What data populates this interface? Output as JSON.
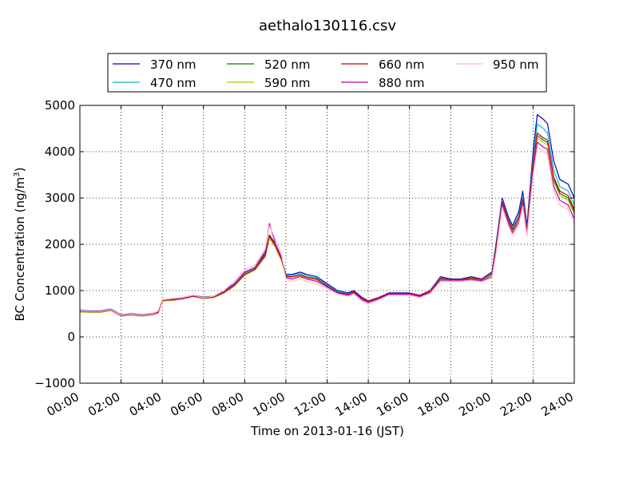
{
  "chart_data": {
    "type": "line",
    "title": "aethalo130116.csv",
    "xlabel": "Time on 2013-01-16 (JST)",
    "ylabel": "BC Concentration (ng/m³)",
    "ylabel_parts": {
      "main": "BC Concentration (ng/m",
      "sup": "3",
      "end": ")"
    },
    "xlim": [
      0,
      24
    ],
    "ylim": [
      -1000,
      5000
    ],
    "x_ticks": [
      0,
      2,
      4,
      6,
      8,
      10,
      12,
      14,
      16,
      18,
      20,
      22,
      24
    ],
    "x_tick_labels": [
      "00:00",
      "02:00",
      "04:00",
      "06:00",
      "08:00",
      "10:00",
      "12:00",
      "14:00",
      "16:00",
      "18:00",
      "20:00",
      "22:00",
      "24:00"
    ],
    "y_ticks": [
      -1000,
      0,
      1000,
      2000,
      3000,
      4000,
      5000
    ],
    "y_tick_labels": [
      "−1000",
      "0",
      "1000",
      "2000",
      "3000",
      "4000",
      "5000"
    ],
    "grid": true,
    "legend_position": "top",
    "x": [
      0.0,
      0.5,
      1.0,
      1.5,
      2.0,
      2.5,
      3.0,
      3.5,
      3.8,
      4.0,
      4.5,
      5.0,
      5.5,
      6.0,
      6.5,
      7.0,
      7.5,
      8.0,
      8.5,
      9.0,
      9.2,
      9.5,
      9.8,
      10.0,
      10.3,
      10.7,
      11.0,
      11.5,
      12.0,
      12.5,
      13.0,
      13.3,
      13.7,
      14.0,
      14.5,
      15.0,
      15.5,
      16.0,
      16.5,
      17.0,
      17.5,
      18.0,
      18.5,
      19.0,
      19.5,
      20.0,
      20.2,
      20.5,
      20.8,
      21.0,
      21.3,
      21.5,
      21.7,
      22.0,
      22.2,
      22.5,
      22.7,
      23.0,
      23.3,
      23.7,
      24.0
    ],
    "series": [
      {
        "name": "370 nm",
        "color": "#0000cc",
        "values": [
          570,
          560,
          560,
          600,
          480,
          500,
          480,
          500,
          550,
          800,
          820,
          850,
          900,
          860,
          880,
          1000,
          1150,
          1400,
          1500,
          1800,
          2200,
          2000,
          1700,
          1350,
          1350,
          1400,
          1350,
          1300,
          1150,
          1000,
          950,
          1000,
          850,
          780,
          850,
          950,
          950,
          950,
          900,
          1000,
          1300,
          1250,
          1250,
          1300,
          1250,
          1400,
          2000,
          3000,
          2600,
          2400,
          2700,
          3150,
          2400,
          4000,
          4800,
          4700,
          4600,
          3800,
          3400,
          3300,
          3000
        ]
      },
      {
        "name": "470 nm",
        "color": "#00bfbf",
        "values": [
          560,
          550,
          550,
          590,
          470,
          490,
          470,
          490,
          540,
          790,
          810,
          840,
          890,
          850,
          870,
          980,
          1130,
          1380,
          1480,
          1780,
          2180,
          1980,
          1680,
          1330,
          1330,
          1370,
          1320,
          1270,
          1120,
          980,
          930,
          980,
          830,
          770,
          840,
          940,
          940,
          940,
          890,
          990,
          1280,
          1240,
          1240,
          1280,
          1240,
          1380,
          1950,
          2950,
          2550,
          2350,
          2620,
          3050,
          2330,
          3850,
          4600,
          4500,
          4400,
          3600,
          3250,
          3150,
          2850
        ]
      },
      {
        "name": "520 nm",
        "color": "#007f00",
        "values": [
          540,
          540,
          540,
          580,
          460,
          480,
          460,
          480,
          520,
          780,
          800,
          820,
          880,
          840,
          850,
          950,
          1100,
          1350,
          1450,
          1750,
          2150,
          1950,
          1650,
          1300,
          1300,
          1330,
          1280,
          1240,
          1100,
          950,
          910,
          960,
          820,
          760,
          830,
          930,
          930,
          930,
          880,
          980,
          1250,
          1230,
          1230,
          1260,
          1230,
          1350,
          1900,
          2900,
          2500,
          2300,
          2550,
          2950,
          2280,
          3700,
          4350,
          4250,
          4200,
          3400,
          3100,
          3000,
          2700
        ]
      },
      {
        "name": "590 nm",
        "color": "#bfbf00",
        "values": [
          540,
          530,
          530,
          570,
          450,
          470,
          450,
          470,
          520,
          770,
          790,
          820,
          870,
          830,
          850,
          950,
          1100,
          1330,
          1440,
          1730,
          2130,
          1930,
          1630,
          1290,
          1290,
          1320,
          1270,
          1230,
          1090,
          940,
          900,
          950,
          810,
          750,
          820,
          920,
          920,
          920,
          870,
          970,
          1240,
          1220,
          1220,
          1250,
          1220,
          1340,
          1880,
          2880,
          2480,
          2280,
          2520,
          2920,
          2260,
          3650,
          4300,
          4200,
          4150,
          3350,
          3050,
          2950,
          2650
        ]
      },
      {
        "name": "660 nm",
        "color": "#cc0000",
        "values": [
          550,
          540,
          540,
          580,
          460,
          480,
          460,
          480,
          530,
          790,
          800,
          830,
          880,
          840,
          860,
          960,
          1110,
          1350,
          1460,
          1760,
          2200,
          1960,
          1660,
          1310,
          1300,
          1340,
          1290,
          1250,
          1100,
          960,
          920,
          970,
          830,
          770,
          840,
          940,
          940,
          940,
          890,
          990,
          1260,
          1240,
          1240,
          1270,
          1240,
          1360,
          1920,
          2920,
          2520,
          2320,
          2570,
          2980,
          2300,
          3750,
          4400,
          4300,
          4250,
          3450,
          3150,
          3050,
          2750
        ]
      },
      {
        "name": "880 nm",
        "color": "#bf00bf",
        "values": [
          560,
          550,
          550,
          590,
          470,
          490,
          470,
          490,
          540,
          800,
          820,
          840,
          890,
          850,
          880,
          980,
          1150,
          1400,
          1500,
          1850,
          2450,
          2000,
          1700,
          1280,
          1250,
          1300,
          1250,
          1200,
          1080,
          950,
          900,
          950,
          800,
          740,
          820,
          920,
          920,
          920,
          870,
          960,
          1220,
          1220,
          1220,
          1240,
          1210,
          1300,
          1850,
          2850,
          2450,
          2250,
          2480,
          2880,
          2220,
          3600,
          4200,
          4100,
          4050,
          3250,
          2950,
          2850,
          2550
        ]
      },
      {
        "name": "950 nm",
        "color": "#ffb6c1",
        "values": [
          560,
          550,
          550,
          590,
          470,
          490,
          470,
          490,
          560,
          800,
          830,
          850,
          900,
          850,
          880,
          1000,
          1200,
          1450,
          1550,
          1900,
          2400,
          2100,
          1750,
          1250,
          1200,
          1250,
          1200,
          1150,
          1050,
          930,
          880,
          930,
          780,
          720,
          800,
          900,
          900,
          900,
          850,
          940,
          1200,
          1200,
          1200,
          1220,
          1190,
          1280,
          1800,
          2800,
          2400,
          2200,
          2430,
          2830,
          2180,
          3500,
          4100,
          4000,
          3950,
          3150,
          2850,
          2750,
          2450
        ]
      }
    ]
  }
}
